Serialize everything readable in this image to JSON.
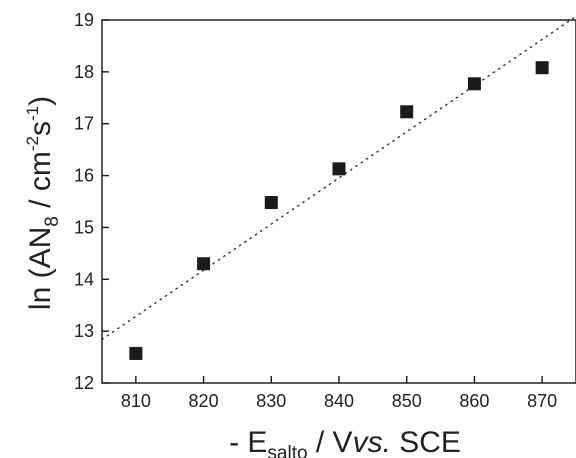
{
  "chart_data": {
    "type": "scatter",
    "title": "",
    "xlabel": {
      "prefix": "- E",
      "subscript": "salto",
      "mid": " / V",
      "italic": "vs.",
      "suffix": " SCE"
    },
    "ylabel": {
      "prefix": "ln (AN",
      "subscript": "8",
      "mid": " / cm",
      "sup1": "-2",
      "s": "s",
      "sup2": "-1",
      "suffix": ")"
    },
    "xlim": [
      805,
      875
    ],
    "ylim": [
      12,
      19
    ],
    "xticks": [
      810,
      820,
      830,
      840,
      850,
      860,
      870
    ],
    "yticks": [
      12,
      13,
      14,
      15,
      16,
      17,
      18,
      19
    ],
    "grid": false,
    "legend": "none",
    "series": [
      {
        "marker": "square",
        "color": "#1a1a1a",
        "x": [
          810,
          820,
          830,
          840,
          850,
          860,
          870
        ],
        "y": [
          12.57,
          14.3,
          15.48,
          16.13,
          17.23,
          17.77,
          18.08
        ]
      }
    ],
    "fit_line": {
      "style": "dotted",
      "color": "#333333",
      "x": [
        805,
        875
      ],
      "y": [
        12.84,
        19.07
      ]
    }
  }
}
